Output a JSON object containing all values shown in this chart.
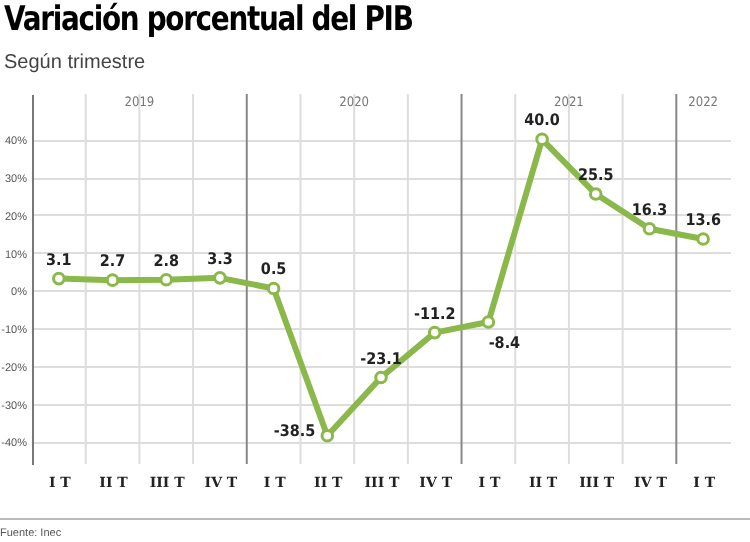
{
  "chart_data": {
    "type": "line",
    "title": "Variación porcentual del PIB",
    "subtitle": "Según trimestre",
    "categories": [
      "I T",
      "II T",
      "III T",
      "IV T",
      "I T",
      "II T",
      "III T",
      "IV T",
      "I T",
      "II T",
      "III T",
      "IV T",
      "I T"
    ],
    "series": [
      {
        "color": "#8ab84a",
        "values": [
          3.1,
          2.7,
          2.8,
          3.3,
          0.5,
          -38.5,
          -23.1,
          -11.2,
          -8.4,
          40.0,
          25.5,
          16.3,
          13.6
        ],
        "value_labels": [
          "3.1",
          "2.7",
          "2.8",
          "3.3",
          "0.5",
          "-38.5",
          "-23.1",
          "-11.2",
          "-8.4",
          "40.0",
          "25.5",
          "16.3",
          "13.6"
        ]
      }
    ],
    "ylim": [
      -46,
      52
    ],
    "yticks": [
      {
        "value": 40,
        "label": "40%"
      },
      {
        "value": 30,
        "label": "30%"
      },
      {
        "value": 20,
        "label": "20%"
      },
      {
        "value": 10,
        "label": "10%"
      },
      {
        "value": 0,
        "label": "0%"
      },
      {
        "value": -10,
        "label": "-10%"
      },
      {
        "value": -20,
        "label": "-20%"
      },
      {
        "value": -30,
        "label": "-30%"
      },
      {
        "value": -40,
        "label": "-40%"
      }
    ],
    "grid": true,
    "marker": "circle",
    "line_style": "solid",
    "annotations": [
      "2019",
      "2020",
      "2021",
      "2022",
      "Fuente: Inec"
    ]
  }
}
